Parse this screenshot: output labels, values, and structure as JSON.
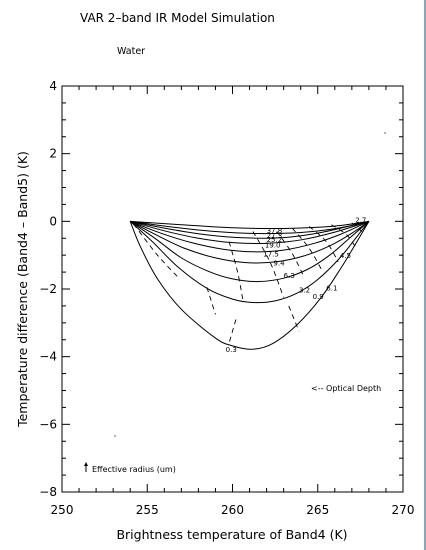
{
  "chart_data": {
    "type": "line",
    "title": "VAR 2–band IR Model Simulation",
    "subtitle": "Water",
    "xlabel": "Brightness temperature of Band4  (K)",
    "ylabel": "Temperature difference (Band4 – Band5)  (K)",
    "xlim": [
      250,
      270
    ],
    "ylim": [
      -8,
      4
    ],
    "xticks": [
      "250",
      "255",
      "260",
      "265",
      "270"
    ],
    "yticks": [
      "4",
      "2",
      "0",
      "−2",
      "−4",
      "−6",
      "−8"
    ],
    "grid": false,
    "annotations": {
      "optical_depth": "<-- Optical Depth",
      "effective_radius": "Effective radius (um)"
    },
    "optical_depth_labels": [
      {
        "text": "0.3",
        "x": 259.6,
        "y": -3.78
      },
      {
        "text": "0.9",
        "x": 264.7,
        "y": -2.2
      },
      {
        "text": "3.2",
        "x": 263.9,
        "y": -2.02
      },
      {
        "text": "6.3",
        "x": 263.0,
        "y": -1.58
      },
      {
        "text": "9.4",
        "x": 262.4,
        "y": -1.22
      },
      {
        "text": "17.5",
        "x": 261.8,
        "y": -0.95
      },
      {
        "text": "19.0",
        "x": 261.9,
        "y": -0.68
      },
      {
        "text": "25.2",
        "x": 262.0,
        "y": -0.52
      },
      {
        "text": "27.3",
        "x": 262.0,
        "y": -0.4
      },
      {
        "text": "37.8",
        "x": 262.0,
        "y": -0.25
      }
    ],
    "radius_labels": [
      {
        "text": "6.1",
        "x": 265.5,
        "y": -1.95
      },
      {
        "text": "4.5",
        "x": 266.3,
        "y": -1.0
      },
      {
        "text": "2.7",
        "x": 267.2,
        "y": 0.05
      }
    ],
    "series": [
      {
        "x": [
          254.0,
          254.6,
          255.6,
          257.0,
          259.0,
          260.0,
          261.2,
          262.4,
          263.8,
          265.2,
          266.4,
          267.3,
          268.0
        ],
        "y": [
          0.0,
          -0.75,
          -1.7,
          -2.6,
          -3.45,
          -3.68,
          -3.78,
          -3.6,
          -3.05,
          -2.25,
          -1.35,
          -0.6,
          0.0
        ]
      },
      {
        "x": [
          254.0,
          255.3,
          256.8,
          258.5,
          260.0,
          261.2,
          262.5,
          263.8,
          265.0,
          266.3,
          267.3,
          268.0
        ],
        "y": [
          0.0,
          -0.6,
          -1.35,
          -1.98,
          -2.3,
          -2.4,
          -2.35,
          -2.12,
          -1.72,
          -1.08,
          -0.45,
          0.0
        ]
      },
      {
        "x": [
          254.0,
          255.5,
          257.0,
          258.6,
          260.0,
          261.5,
          263.0,
          264.4,
          265.7,
          266.9,
          268.0
        ],
        "y": [
          0.0,
          -0.52,
          -1.08,
          -1.48,
          -1.7,
          -1.78,
          -1.68,
          -1.42,
          -1.0,
          -0.48,
          0.0
        ]
      },
      {
        "x": [
          254.0,
          255.6,
          257.2,
          259.0,
          260.8,
          262.5,
          264.2,
          265.8,
          267.0,
          268.0
        ],
        "y": [
          0.0,
          -0.42,
          -0.8,
          -1.08,
          -1.22,
          -1.2,
          -1.02,
          -0.7,
          -0.35,
          0.0
        ]
      },
      {
        "x": [
          254.0,
          255.8,
          257.6,
          259.4,
          261.2,
          263.0,
          264.8,
          266.4,
          268.0
        ],
        "y": [
          0.0,
          -0.35,
          -0.63,
          -0.82,
          -0.9,
          -0.85,
          -0.65,
          -0.37,
          0.0
        ]
      },
      {
        "x": [
          254.0,
          256.0,
          258.0,
          260.0,
          262.0,
          264.0,
          266.0,
          268.0
        ],
        "y": [
          0.0,
          -0.28,
          -0.5,
          -0.63,
          -0.65,
          -0.55,
          -0.32,
          0.0
        ]
      },
      {
        "x": [
          254.0,
          256.2,
          258.5,
          260.8,
          263.0,
          265.2,
          268.0
        ],
        "y": [
          0.0,
          -0.22,
          -0.4,
          -0.49,
          -0.48,
          -0.33,
          0.0
        ]
      },
      {
        "x": [
          254.0,
          256.5,
          259.0,
          261.5,
          264.0,
          266.2,
          268.0
        ],
        "y": [
          0.0,
          -0.17,
          -0.3,
          -0.36,
          -0.33,
          -0.2,
          0.0
        ]
      },
      {
        "x": [
          254.0,
          257.0,
          260.0,
          263.0,
          266.0,
          268.0
        ],
        "y": [
          0.0,
          -0.1,
          -0.19,
          -0.21,
          -0.14,
          0.0
        ]
      }
    ],
    "radius_lines": [
      {
        "x": [
          254.2,
          255.6,
          256.9
        ],
        "y": [
          -0.08,
          -1.0,
          -1.7
        ]
      },
      {
        "x": [
          258.5,
          259.0
        ],
        "y": [
          -1.95,
          -2.75
        ]
      },
      {
        "x": [
          259.8,
          260.3,
          260.6
        ],
        "y": [
          -0.6,
          -1.5,
          -2.3
        ]
      },
      {
        "x": [
          260.2,
          259.8
        ],
        "y": [
          -2.9,
          -3.6
        ]
      },
      {
        "x": [
          261.2,
          262.2,
          263.0
        ],
        "y": [
          -0.3,
          -1.2,
          -2.25
        ]
      },
      {
        "x": [
          263.3,
          263.9
        ],
        "y": [
          -2.5,
          -3.25
        ]
      },
      {
        "x": [
          262.6,
          263.5,
          264.2
        ],
        "y": [
          -0.3,
          -0.95,
          -1.65
        ]
      },
      {
        "x": [
          263.5,
          264.5,
          265.3
        ],
        "y": [
          -0.2,
          -0.8,
          -1.5
        ]
      },
      {
        "x": [
          264.5,
          265.5,
          266.2
        ],
        "y": [
          -0.15,
          -0.6,
          -1.2
        ]
      },
      {
        "x": [
          265.8,
          266.7,
          267.2
        ],
        "y": [
          -0.1,
          -0.4,
          -0.75
        ]
      },
      {
        "x": [
          267.0,
          267.6
        ],
        "y": [
          -0.05,
          -0.3
        ]
      }
    ]
  }
}
